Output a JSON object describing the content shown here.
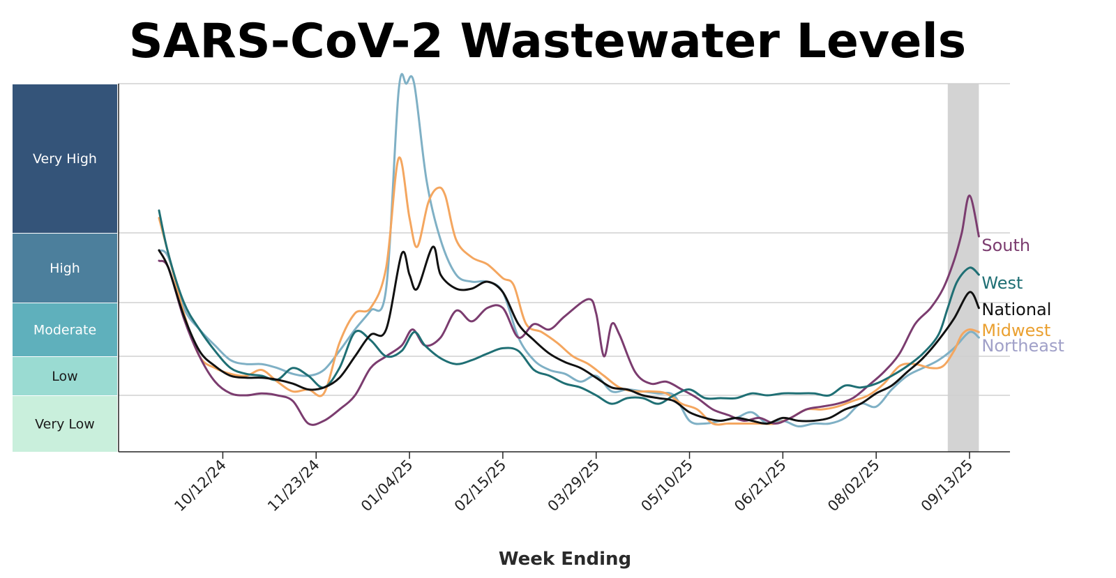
{
  "chart_data": {
    "type": "line",
    "title": "SARS-CoV-2 Wastewater Levels",
    "xlabel": "Week Ending",
    "ylabel": "",
    "x_ticks": [
      "10/12/24",
      "11/23/24",
      "01/04/25",
      "02/15/25",
      "03/29/25",
      "05/10/25",
      "06/21/25",
      "08/02/25",
      "09/13/25"
    ],
    "x_range_weeks": [
      -6.7,
      50.6
    ],
    "tick_week_index": [
      0,
      6,
      12,
      18,
      24,
      30,
      36,
      42,
      48
    ],
    "level_bands": [
      {
        "label": "Very Low",
        "from": 0,
        "to": 1,
        "color": "#c9efdc",
        "text_color": "#1a1a1a"
      },
      {
        "label": "Low",
        "from": 1,
        "to": 2,
        "color": "#9adbd2",
        "text_color": "#1a1a1a"
      },
      {
        "label": "Moderate",
        "from": 2,
        "to": 3,
        "color": "#5fb0bc",
        "text_color": "#ffffff"
      },
      {
        "label": "High",
        "from": 3,
        "to": 4,
        "color": "#4c7f9c",
        "text_color": "#ffffff"
      },
      {
        "label": "Very High",
        "from": 4,
        "to": 5,
        "color": "#345479",
        "text_color": "#ffffff"
      }
    ],
    "shaded_region": {
      "from_week": 46.6,
      "to_week": 48.6,
      "color": "#d3d3d3"
    },
    "series": [
      {
        "name": "Northeast",
        "color": "#7fb0c5",
        "label_color": "#a0a0c8",
        "points": [
          [
            -4.1,
            3.75
          ],
          [
            -3.5,
            3.65
          ],
          [
            -2.5,
            2.9
          ],
          [
            -1.5,
            2.5
          ],
          [
            -0.5,
            2.2
          ],
          [
            0.5,
            1.9
          ],
          [
            1.5,
            1.8
          ],
          [
            2.5,
            1.8
          ],
          [
            3.5,
            1.7
          ],
          [
            4.5,
            1.55
          ],
          [
            5.5,
            1.5
          ],
          [
            6.5,
            1.65
          ],
          [
            7.5,
            2.1
          ],
          [
            8.5,
            2.5
          ],
          [
            9.5,
            2.85
          ],
          [
            10.5,
            3.2
          ],
          [
            11.3,
            4.95
          ],
          [
            11.8,
            5.25
          ],
          [
            12.3,
            5.05
          ],
          [
            13.1,
            4.35
          ],
          [
            14.0,
            3.9
          ],
          [
            15.0,
            3.4
          ],
          [
            16.0,
            3.3
          ],
          [
            17.0,
            3.3
          ],
          [
            18.0,
            3.15
          ],
          [
            19.0,
            2.35
          ],
          [
            20.0,
            1.9
          ],
          [
            21.0,
            1.65
          ],
          [
            22.0,
            1.55
          ],
          [
            23.0,
            1.35
          ],
          [
            24.0,
            1.5
          ],
          [
            25.0,
            1.1
          ],
          [
            26.0,
            1.15
          ],
          [
            27.0,
            1.1
          ],
          [
            28.0,
            1.05
          ],
          [
            29.0,
            1.0
          ],
          [
            30.0,
            0.55
          ],
          [
            31.0,
            0.5
          ],
          [
            32.0,
            0.55
          ],
          [
            33.0,
            0.6
          ],
          [
            34.0,
            0.7
          ],
          [
            35.0,
            0.5
          ],
          [
            36.0,
            0.55
          ],
          [
            37.0,
            0.45
          ],
          [
            38.0,
            0.5
          ],
          [
            39.0,
            0.5
          ],
          [
            40.0,
            0.6
          ],
          [
            41.0,
            0.85
          ],
          [
            42.0,
            0.8
          ],
          [
            43.0,
            1.15
          ],
          [
            44.0,
            1.5
          ],
          [
            45.0,
            1.7
          ],
          [
            46.0,
            1.9
          ],
          [
            47.0,
            2.15
          ],
          [
            48.0,
            2.45
          ],
          [
            48.6,
            2.35
          ]
        ]
      },
      {
        "name": "Midwest",
        "color": "#f4a65f",
        "label_color": "#eaa030",
        "points": [
          [
            -4.1,
            4.1
          ],
          [
            -3.5,
            3.7
          ],
          [
            -2.5,
            2.8
          ],
          [
            -1.5,
            2.0
          ],
          [
            -0.5,
            1.7
          ],
          [
            0.5,
            1.55
          ],
          [
            1.5,
            1.5
          ],
          [
            2.5,
            1.65
          ],
          [
            3.5,
            1.35
          ],
          [
            4.5,
            1.1
          ],
          [
            5.5,
            1.15
          ],
          [
            6.5,
            1.05
          ],
          [
            7.5,
            2.25
          ],
          [
            8.5,
            2.8
          ],
          [
            9.5,
            2.9
          ],
          [
            10.5,
            3.5
          ],
          [
            11.3,
            4.5
          ],
          [
            12.0,
            4.1
          ],
          [
            12.5,
            3.8
          ],
          [
            13.2,
            4.2
          ],
          [
            13.8,
            4.3
          ],
          [
            14.3,
            4.25
          ],
          [
            15.0,
            3.9
          ],
          [
            16.0,
            3.65
          ],
          [
            17.0,
            3.55
          ],
          [
            18.0,
            3.35
          ],
          [
            18.7,
            3.25
          ],
          [
            19.5,
            2.6
          ],
          [
            20.5,
            2.45
          ],
          [
            21.5,
            2.25
          ],
          [
            22.5,
            2.0
          ],
          [
            23.5,
            1.8
          ],
          [
            24.5,
            1.5
          ],
          [
            25.5,
            1.2
          ],
          [
            26.5,
            1.1
          ],
          [
            27.5,
            1.1
          ],
          [
            28.5,
            1.05
          ],
          [
            29.5,
            0.85
          ],
          [
            30.5,
            0.75
          ],
          [
            31.5,
            0.5
          ],
          [
            32.5,
            0.5
          ],
          [
            33.5,
            0.5
          ],
          [
            34.5,
            0.5
          ],
          [
            35.5,
            0.5
          ],
          [
            36.5,
            0.6
          ],
          [
            37.5,
            0.75
          ],
          [
            38.5,
            0.75
          ],
          [
            39.5,
            0.8
          ],
          [
            40.5,
            0.9
          ],
          [
            41.5,
            1.0
          ],
          [
            42.5,
            1.3
          ],
          [
            43.5,
            1.75
          ],
          [
            44.5,
            1.8
          ],
          [
            45.5,
            1.7
          ],
          [
            46.3,
            1.75
          ],
          [
            47.0,
            2.1
          ],
          [
            47.5,
            2.4
          ],
          [
            48.0,
            2.5
          ],
          [
            48.6,
            2.45
          ]
        ]
      },
      {
        "name": "South",
        "color": "#7b3c6f",
        "label_color": "#7b3c6f",
        "points": [
          [
            -4.1,
            3.6
          ],
          [
            -3.5,
            3.5
          ],
          [
            -2.5,
            2.7
          ],
          [
            -1.5,
            2.0
          ],
          [
            -0.5,
            1.35
          ],
          [
            0.5,
            1.05
          ],
          [
            1.5,
            1.0
          ],
          [
            2.5,
            1.05
          ],
          [
            3.5,
            1.0
          ],
          [
            4.5,
            0.9
          ],
          [
            5.5,
            0.5
          ],
          [
            6.5,
            0.55
          ],
          [
            7.5,
            0.75
          ],
          [
            8.5,
            1.0
          ],
          [
            9.5,
            1.7
          ],
          [
            10.5,
            2.0
          ],
          [
            11.5,
            2.2
          ],
          [
            12.2,
            2.5
          ],
          [
            13.0,
            2.2
          ],
          [
            14.0,
            2.35
          ],
          [
            15.0,
            2.85
          ],
          [
            16.0,
            2.65
          ],
          [
            17.0,
            2.9
          ],
          [
            18.0,
            2.9
          ],
          [
            19.0,
            2.35
          ],
          [
            20.0,
            2.6
          ],
          [
            21.0,
            2.5
          ],
          [
            22.0,
            2.75
          ],
          [
            23.5,
            3.05
          ],
          [
            24.0,
            2.8
          ],
          [
            24.5,
            2.0
          ],
          [
            25.0,
            2.6
          ],
          [
            25.5,
            2.4
          ],
          [
            26.5,
            1.6
          ],
          [
            27.5,
            1.3
          ],
          [
            28.5,
            1.35
          ],
          [
            29.5,
            1.15
          ],
          [
            30.5,
            0.95
          ],
          [
            31.5,
            0.75
          ],
          [
            32.5,
            0.65
          ],
          [
            33.5,
            0.55
          ],
          [
            34.5,
            0.6
          ],
          [
            35.5,
            0.5
          ],
          [
            36.5,
            0.6
          ],
          [
            37.5,
            0.75
          ],
          [
            38.5,
            0.8
          ],
          [
            39.5,
            0.85
          ],
          [
            40.5,
            0.95
          ],
          [
            41.5,
            1.25
          ],
          [
            42.5,
            1.6
          ],
          [
            43.5,
            2.05
          ],
          [
            44.5,
            2.6
          ],
          [
            45.5,
            2.9
          ],
          [
            46.3,
            3.2
          ],
          [
            47.0,
            3.6
          ],
          [
            47.5,
            4.0
          ],
          [
            48.0,
            4.25
          ],
          [
            48.6,
            3.95
          ]
        ]
      },
      {
        "name": "West",
        "color": "#1f6f74",
        "label_color": "#1f6f74",
        "points": [
          [
            -4.1,
            4.15
          ],
          [
            -3.5,
            3.7
          ],
          [
            -2.5,
            3.0
          ],
          [
            -1.5,
            2.5
          ],
          [
            -0.5,
            2.1
          ],
          [
            0.5,
            1.7
          ],
          [
            1.5,
            1.55
          ],
          [
            2.5,
            1.5
          ],
          [
            3.5,
            1.4
          ],
          [
            4.5,
            1.7
          ],
          [
            5.5,
            1.5
          ],
          [
            6.5,
            1.2
          ],
          [
            7.5,
            1.7
          ],
          [
            8.5,
            2.45
          ],
          [
            9.5,
            2.3
          ],
          [
            10.5,
            2.0
          ],
          [
            11.5,
            2.1
          ],
          [
            12.3,
            2.45
          ],
          [
            13.0,
            2.2
          ],
          [
            14.0,
            1.95
          ],
          [
            15.0,
            1.8
          ],
          [
            16.0,
            1.9
          ],
          [
            17.0,
            2.05
          ],
          [
            18.0,
            2.15
          ],
          [
            19.0,
            2.1
          ],
          [
            20.0,
            1.65
          ],
          [
            21.0,
            1.5
          ],
          [
            22.0,
            1.3
          ],
          [
            23.0,
            1.2
          ],
          [
            24.0,
            1.0
          ],
          [
            25.0,
            0.85
          ],
          [
            26.0,
            0.95
          ],
          [
            27.0,
            0.95
          ],
          [
            28.0,
            0.85
          ],
          [
            29.0,
            1.0
          ],
          [
            30.0,
            1.15
          ],
          [
            31.0,
            0.95
          ],
          [
            32.0,
            0.95
          ],
          [
            33.0,
            0.95
          ],
          [
            34.0,
            1.05
          ],
          [
            35.0,
            1.0
          ],
          [
            36.0,
            1.05
          ],
          [
            37.0,
            1.05
          ],
          [
            38.0,
            1.05
          ],
          [
            39.0,
            1.0
          ],
          [
            40.0,
            1.25
          ],
          [
            41.0,
            1.2
          ],
          [
            42.0,
            1.3
          ],
          [
            43.0,
            1.5
          ],
          [
            44.0,
            1.75
          ],
          [
            45.0,
            2.05
          ],
          [
            46.0,
            2.4
          ],
          [
            46.6,
            2.9
          ],
          [
            47.2,
            3.3
          ],
          [
            48.0,
            3.5
          ],
          [
            48.6,
            3.4
          ]
        ]
      },
      {
        "name": "National",
        "color": "#111111",
        "label_color": "#111111",
        "points": [
          [
            -4.1,
            3.75
          ],
          [
            -3.5,
            3.5
          ],
          [
            -2.5,
            2.75
          ],
          [
            -1.5,
            2.1
          ],
          [
            -0.5,
            1.75
          ],
          [
            0.5,
            1.5
          ],
          [
            1.5,
            1.45
          ],
          [
            2.5,
            1.45
          ],
          [
            3.5,
            1.4
          ],
          [
            4.5,
            1.3
          ],
          [
            5.5,
            1.15
          ],
          [
            6.5,
            1.2
          ],
          [
            7.5,
            1.45
          ],
          [
            8.5,
            2.0
          ],
          [
            9.5,
            2.4
          ],
          [
            10.5,
            2.5
          ],
          [
            11.5,
            3.7
          ],
          [
            12.0,
            3.4
          ],
          [
            12.5,
            3.2
          ],
          [
            13.5,
            3.8
          ],
          [
            14.0,
            3.4
          ],
          [
            15.0,
            3.2
          ],
          [
            16.0,
            3.2
          ],
          [
            17.0,
            3.3
          ],
          [
            18.0,
            3.15
          ],
          [
            19.0,
            2.6
          ],
          [
            20.0,
            2.3
          ],
          [
            21.0,
            2.05
          ],
          [
            22.0,
            1.85
          ],
          [
            23.0,
            1.7
          ],
          [
            24.0,
            1.45
          ],
          [
            25.0,
            1.2
          ],
          [
            26.0,
            1.15
          ],
          [
            27.0,
            1.0
          ],
          [
            28.0,
            0.95
          ],
          [
            29.0,
            0.9
          ],
          [
            30.0,
            0.7
          ],
          [
            31.0,
            0.6
          ],
          [
            32.0,
            0.55
          ],
          [
            33.0,
            0.6
          ],
          [
            34.0,
            0.55
          ],
          [
            35.0,
            0.5
          ],
          [
            36.0,
            0.6
          ],
          [
            37.0,
            0.55
          ],
          [
            38.0,
            0.55
          ],
          [
            39.0,
            0.6
          ],
          [
            40.0,
            0.75
          ],
          [
            41.0,
            0.85
          ],
          [
            42.0,
            1.05
          ],
          [
            43.0,
            1.25
          ],
          [
            44.0,
            1.6
          ],
          [
            45.0,
            1.95
          ],
          [
            46.0,
            2.3
          ],
          [
            47.0,
            2.7
          ],
          [
            48.0,
            3.15
          ],
          [
            48.6,
            2.9
          ]
        ]
      }
    ]
  }
}
